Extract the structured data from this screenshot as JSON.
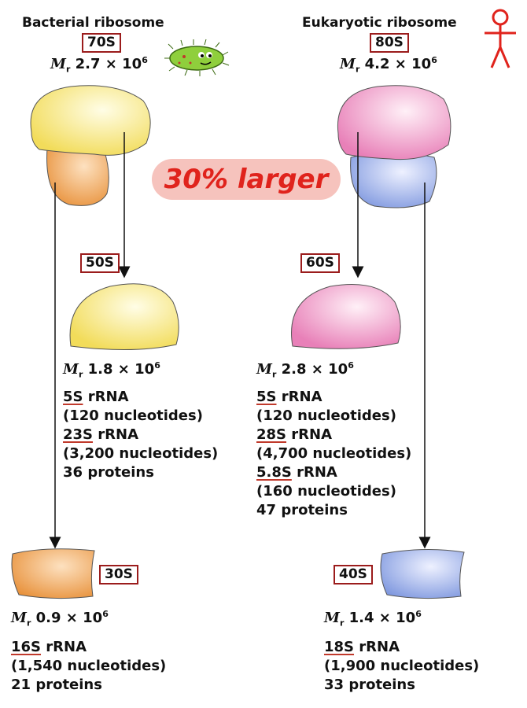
{
  "bacterial": {
    "title": "Bacterial ribosome",
    "s_value": "70S",
    "mr": {
      "prefix": "M",
      "sub": "r",
      "value": "2.7 × 10",
      "exp": "6"
    },
    "large_subunit": {
      "s_value": "50S",
      "mr": {
        "value": "1.8 × 10",
        "exp": "6"
      },
      "lines": [
        {
          "underline": "5S",
          "rest": " rRNA"
        },
        {
          "text": "(120 nucleotides)"
        },
        {
          "underline": "23S",
          "rest": " rRNA"
        },
        {
          "text": "(3,200 nucleotides)"
        },
        {
          "text": "36 proteins"
        }
      ]
    },
    "small_subunit": {
      "s_value": "30S",
      "mr": {
        "value": "0.9 × 10",
        "exp": "6"
      },
      "lines": [
        {
          "underline": "16S",
          "rest": " rRNA"
        },
        {
          "text": "(1,540 nucleotides)"
        },
        {
          "text": "21 proteins"
        }
      ]
    }
  },
  "eukaryotic": {
    "title": "Eukaryotic ribosome",
    "s_value": "80S",
    "mr": {
      "value": "4.2 × 10",
      "exp": "6"
    },
    "large_subunit": {
      "s_value": "60S",
      "mr": {
        "value": "2.8 × 10",
        "exp": "6"
      },
      "lines": [
        {
          "underline": "5S",
          "rest": " rRNA"
        },
        {
          "text": "(120 nucleotides)"
        },
        {
          "underline": "28S",
          "rest": " rRNA"
        },
        {
          "text": "(4,700 nucleotides)"
        },
        {
          "underline": "5.8S",
          "rest": " rRNA"
        },
        {
          "text": "(160 nucleotides)"
        },
        {
          "text": "47 proteins"
        }
      ]
    },
    "small_subunit": {
      "s_value": "40S",
      "mr": {
        "value": "1.4 × 10",
        "exp": "6"
      },
      "lines": [
        {
          "underline": "18S",
          "rest": " rRNA"
        },
        {
          "text": "(1,900 nucleotides)"
        },
        {
          "text": "33 proteins"
        }
      ]
    }
  },
  "comparison": "30% larger",
  "colors": {
    "bact_large": "#f7e46a",
    "bact_small": "#eb9a45",
    "euk_large": "#ee8ec0",
    "euk_small": "#8fa6e6",
    "box_border": "#9b1c1c",
    "highlight_text": "#e0231c",
    "highlight_bg": "#f6c3bd",
    "bacterium": "#8fcf3c",
    "person": "#e0231c"
  },
  "icons": [
    "bacterium-icon",
    "person-icon"
  ]
}
